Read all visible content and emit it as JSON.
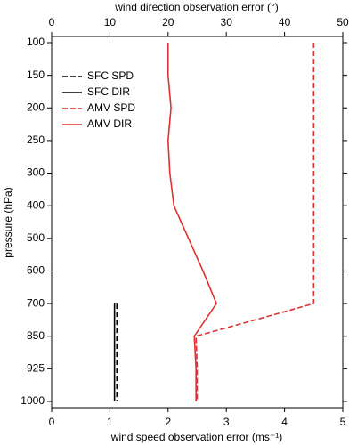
{
  "chart_data": {
    "type": "line",
    "x_label": "wind speed observation error (ms⁻¹)",
    "x2_label": "wind direction observation error (°)",
    "y_label": "pressure (hPa)",
    "categories": [
      "100",
      "150",
      "200",
      "250",
      "300",
      "400",
      "500",
      "600",
      "700",
      "850",
      "925",
      "1000"
    ],
    "xlim": [
      0,
      5
    ],
    "xticks": [
      0,
      1,
      2,
      3,
      4,
      5
    ],
    "x2lim": [
      0,
      50
    ],
    "x2ticks": [
      0,
      10,
      20,
      30,
      40,
      50
    ],
    "legend": "upper left",
    "series": [
      {
        "name": "SFC SPD",
        "color": "#000000",
        "dash": true,
        "values": [
          null,
          null,
          null,
          null,
          null,
          null,
          null,
          null,
          1.12,
          1.12,
          1.12,
          1.12
        ]
      },
      {
        "name": "SFC DIR",
        "color": "#000000",
        "dash": false,
        "axis": "x2",
        "values": [
          null,
          null,
          null,
          null,
          null,
          null,
          null,
          null,
          10.8,
          10.8,
          10.8,
          10.8
        ]
      },
      {
        "name": "AMV SPD",
        "color": "#e03030",
        "dash": true,
        "values": [
          4.5,
          4.5,
          4.5,
          4.5,
          4.5,
          4.5,
          4.5,
          4.5,
          4.5,
          2.48,
          2.5,
          2.5
        ]
      },
      {
        "name": "AMV DIR",
        "color": "#e03030",
        "dash": false,
        "axis": "x2",
        "values": [
          20,
          20,
          20.5,
          20,
          20.3,
          21,
          23.5,
          26,
          28.3,
          24.5,
          24.8,
          24.8
        ]
      }
    ]
  }
}
